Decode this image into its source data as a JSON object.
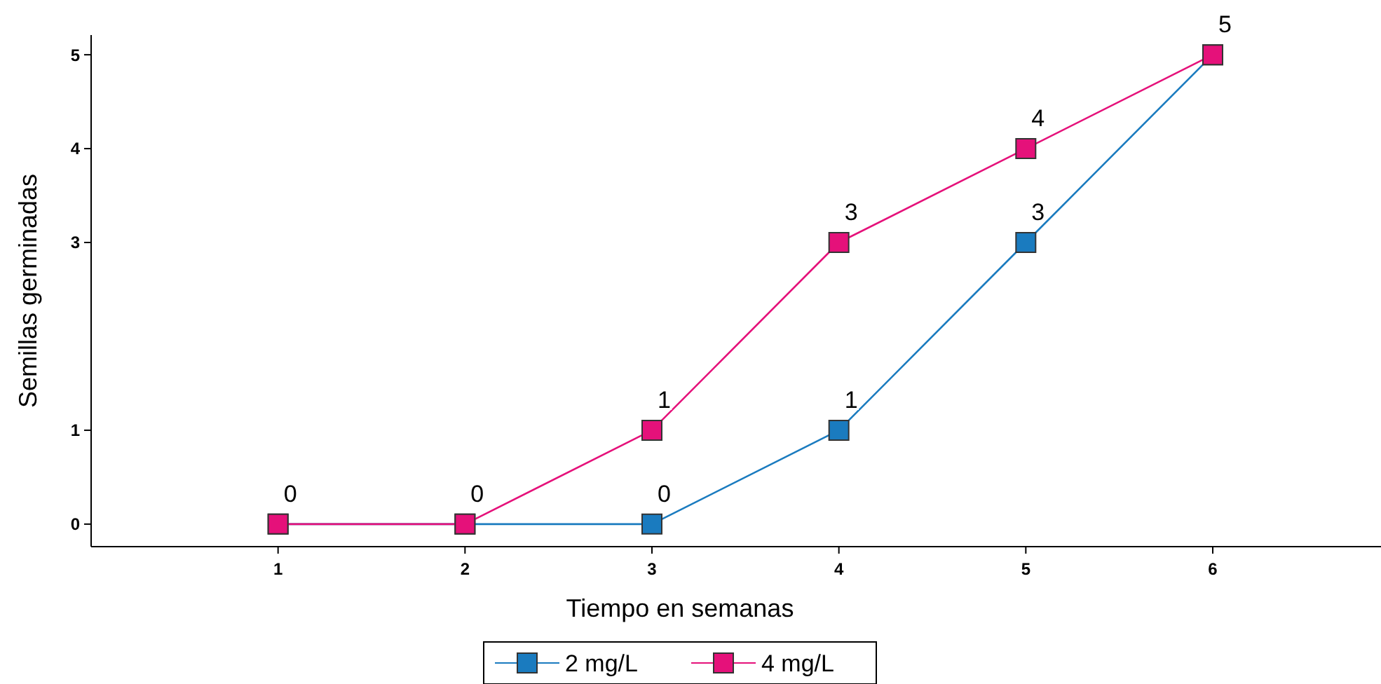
{
  "chart_data": {
    "type": "line",
    "xlabel": "Tiempo en semanas",
    "ylabel": "Semillas germinadas",
    "x": [
      1,
      2,
      3,
      4,
      5,
      6
    ],
    "xlim": [
      0,
      6.9
    ],
    "xticks": [
      1,
      2,
      3,
      4,
      5,
      6
    ],
    "ylim": [
      -0.24,
      5.21
    ],
    "yticks": [
      0,
      1,
      3,
      4,
      5
    ],
    "series": [
      {
        "name": "2 mg/L",
        "color": "#1a7bbf",
        "values": [
          0,
          0,
          0,
          1,
          3,
          5
        ],
        "value_labels": [
          null,
          null,
          "0",
          "1",
          "3",
          null
        ]
      },
      {
        "name": "4 mg/L",
        "color": "#e5117a",
        "values": [
          0,
          0,
          1,
          3,
          4,
          5
        ],
        "value_labels": [
          "0",
          "0",
          "1",
          "3",
          "4",
          "5"
        ]
      }
    ],
    "marker": "square",
    "line_style": "solid",
    "grid": false,
    "legend": "bottom"
  }
}
